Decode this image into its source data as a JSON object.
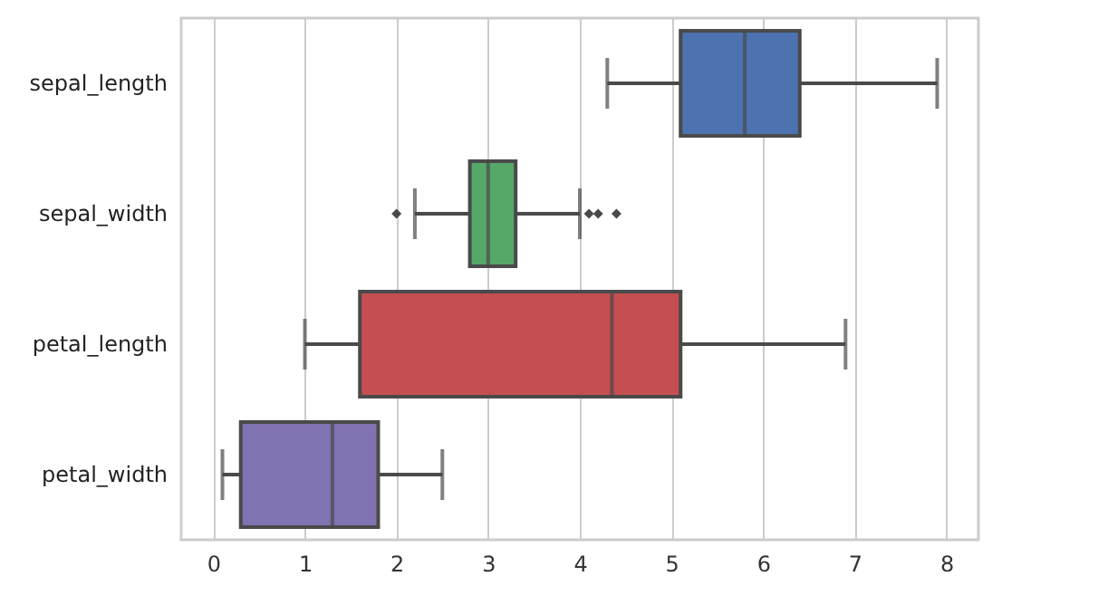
{
  "chart_data": {
    "type": "box",
    "orientation": "horizontal",
    "categories": [
      "sepal_length",
      "sepal_width",
      "petal_length",
      "petal_width"
    ],
    "boxes": [
      {
        "low": 4.3,
        "q1": 5.1,
        "median": 5.8,
        "q3": 6.4,
        "high": 7.9
      },
      {
        "low": 2.2,
        "q1": 2.8,
        "median": 3.0,
        "q3": 3.3,
        "high": 4.0,
        "outliers": [
          2.0,
          4.1,
          4.2,
          4.4
        ]
      },
      {
        "low": 1.0,
        "q1": 1.6,
        "median": 4.35,
        "q3": 5.1,
        "high": 6.9
      },
      {
        "low": 0.1,
        "q1": 0.3,
        "median": 1.3,
        "q3": 1.8,
        "high": 2.5
      }
    ],
    "colors": [
      "#4c72b0",
      "#55a868",
      "#c44e52",
      "#8172b2"
    ],
    "xlim": [
      -0.35,
      8.35
    ],
    "xticks": [
      0,
      1,
      2,
      3,
      4,
      5,
      6,
      7,
      8
    ],
    "grid": "x",
    "marker": "diamond"
  }
}
